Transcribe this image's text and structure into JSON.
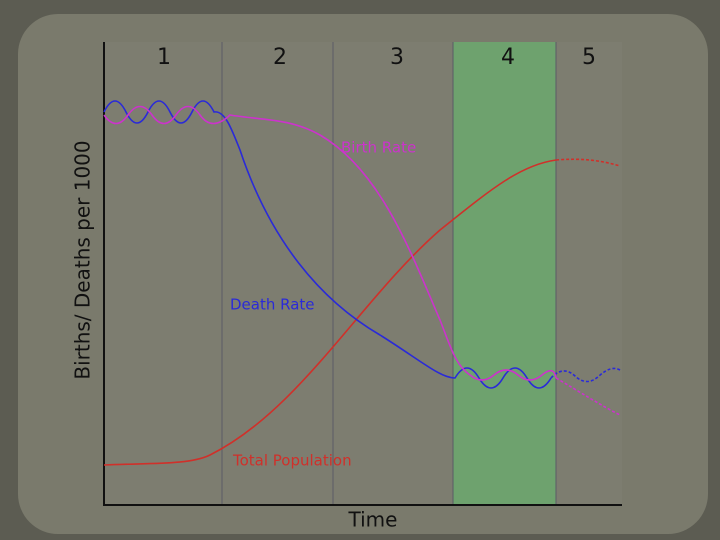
{
  "stages": [
    "1",
    "2",
    "3",
    "4",
    "5"
  ],
  "y_axis_label": "Births/ Deaths per 1000",
  "x_axis_label": "Time",
  "curve_labels": {
    "birth_rate": "Birth Rate",
    "death_rate": "Death Rate",
    "total_population": "Total Population"
  }
}
